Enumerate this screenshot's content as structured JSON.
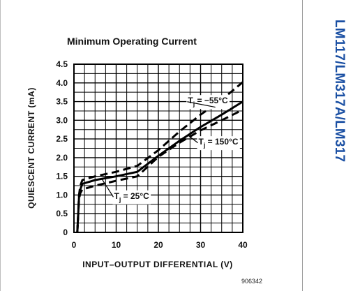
{
  "document": {
    "side_title": "LM117/LM317A/LM317",
    "figure_id": "906342"
  },
  "chart_data": {
    "type": "line",
    "title": "Minimum Operating Current",
    "xlabel": "INPUT–OUTPUT DIFFERENTIAL (V)",
    "ylabel": "QUIESCENT CURRENT (mA)",
    "xlim": [
      0,
      40
    ],
    "ylim": [
      0,
      4.5
    ],
    "x_ticks": [
      "0",
      "10",
      "20",
      "30",
      "40"
    ],
    "y_ticks": [
      "0",
      "0.5",
      "1.0",
      "1.5",
      "2.0",
      "2.5",
      "3.0",
      "3.5",
      "4.0",
      "4.5"
    ],
    "grid": true,
    "series": [
      {
        "name": "Tj = −55°C",
        "style": "dashed",
        "points": [
          [
            0.8,
            0
          ],
          [
            1.2,
            1.0
          ],
          [
            1.5,
            1.25
          ],
          [
            2,
            1.4
          ],
          [
            5,
            1.5
          ],
          [
            10,
            1.62
          ],
          [
            15,
            1.78
          ],
          [
            20,
            2.2
          ],
          [
            25,
            2.7
          ],
          [
            30,
            3.15
          ],
          [
            35,
            3.55
          ],
          [
            40,
            4.02
          ]
        ]
      },
      {
        "name": "Tj = 25°C",
        "style": "solid",
        "points": [
          [
            0.8,
            0
          ],
          [
            1.2,
            0.95
          ],
          [
            1.5,
            1.15
          ],
          [
            2,
            1.3
          ],
          [
            5,
            1.4
          ],
          [
            10,
            1.5
          ],
          [
            15,
            1.62
          ],
          [
            20,
            2.05
          ],
          [
            25,
            2.45
          ],
          [
            30,
            2.82
          ],
          [
            35,
            3.15
          ],
          [
            40,
            3.5
          ]
        ]
      },
      {
        "name": "Tj = 150°C",
        "style": "dashed",
        "points": [
          [
            0.8,
            0
          ],
          [
            1.2,
            0.9
          ],
          [
            1.5,
            1.05
          ],
          [
            2,
            1.15
          ],
          [
            5,
            1.25
          ],
          [
            10,
            1.38
          ],
          [
            15,
            1.5
          ],
          [
            20,
            2.02
          ],
          [
            25,
            2.4
          ],
          [
            30,
            2.73
          ],
          [
            35,
            3.0
          ],
          [
            40,
            3.28
          ]
        ]
      }
    ],
    "annotations": [
      {
        "text_main": "T",
        "sub": "j",
        "text_rest": " = −55°C",
        "x": 27,
        "y": 3.45,
        "point_to": [
          33.5,
          3.35
        ]
      },
      {
        "text_main": "T",
        "sub": "j",
        "text_rest": " = 150°C",
        "x": 29.5,
        "y": 2.35,
        "point_to": [
          27,
          2.6
        ]
      },
      {
        "text_main": "T",
        "sub": "j",
        "text_rest": " = 25°C",
        "x": 9.5,
        "y": 0.9,
        "point_to": [
          6.5,
          1.45
        ]
      }
    ]
  }
}
